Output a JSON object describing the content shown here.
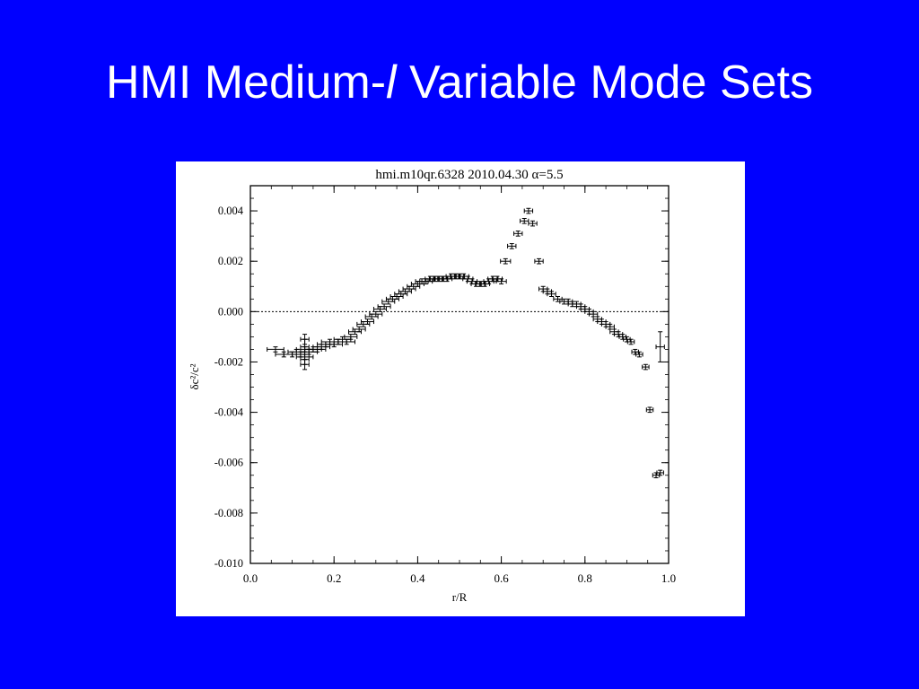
{
  "slide": {
    "title_pre": "HMI Medium-",
    "title_italic": "l",
    "title_post": " Variable Mode Sets"
  },
  "colors": {
    "background": "#0000ff",
    "title": "#ffffff",
    "plot_bg": "#ffffff",
    "ink": "#000000"
  },
  "chart_data": {
    "type": "scatter",
    "title": "hmi.m10qr.6328    2010.04.30    α=5.5",
    "xlabel": "r/R",
    "ylabel": "δc²/c²",
    "xlim": [
      0.0,
      1.0
    ],
    "ylim": [
      -0.01,
      0.005
    ],
    "xticks": [
      "0.0",
      "0.2",
      "0.4",
      "0.6",
      "0.8",
      "1.0"
    ],
    "yticks": [
      "0.004",
      "0.002",
      "0.000",
      "-0.002",
      "-0.004",
      "-0.006",
      "-0.008",
      "-0.010"
    ],
    "grid": false,
    "zero_line": true,
    "series": [
      {
        "x": [
          0.06,
          0.08,
          0.1,
          0.11,
          0.12,
          0.13,
          0.13,
          0.14,
          0.15,
          0.16,
          0.17,
          0.18,
          0.19,
          0.2,
          0.21,
          0.22,
          0.23,
          0.24,
          0.25,
          0.26,
          0.27,
          0.28,
          0.29,
          0.3,
          0.31,
          0.32,
          0.33,
          0.34,
          0.35,
          0.36,
          0.37,
          0.38,
          0.39,
          0.4,
          0.41,
          0.42,
          0.43,
          0.44,
          0.45,
          0.46,
          0.47,
          0.48,
          0.49,
          0.5,
          0.51,
          0.52,
          0.53,
          0.54,
          0.55,
          0.56,
          0.57,
          0.58,
          0.59,
          0.6,
          0.61,
          0.625,
          0.64,
          0.655,
          0.665,
          0.675,
          0.69,
          0.7,
          0.71,
          0.72,
          0.735,
          0.75,
          0.76,
          0.77,
          0.78,
          0.79,
          0.8,
          0.81,
          0.82,
          0.83,
          0.84,
          0.85,
          0.86,
          0.87,
          0.88,
          0.89,
          0.9,
          0.91,
          0.92,
          0.93,
          0.945,
          0.955,
          0.97,
          0.98
        ],
        "y": [
          -0.0015,
          -0.0017,
          -0.0017,
          -0.0016,
          -0.0017,
          -0.0018,
          -0.0015,
          -0.0016,
          -0.0015,
          -0.0015,
          -0.0014,
          -0.0013,
          -0.0012,
          -0.0013,
          -0.0012,
          -0.0011,
          -0.0012,
          -0.001,
          -0.0008,
          -0.0007,
          -0.0005,
          -0.0004,
          -0.0002,
          -0.0001,
          0.0001,
          0.0002,
          0.0004,
          0.0005,
          0.0006,
          0.0007,
          0.0008,
          0.0009,
          0.001,
          0.0011,
          0.0012,
          0.0012,
          0.0013,
          0.0013,
          0.0013,
          0.0013,
          0.0013,
          0.0014,
          0.0014,
          0.0014,
          0.0014,
          0.0013,
          0.0012,
          0.0011,
          0.0011,
          0.0011,
          0.0012,
          0.0013,
          0.0013,
          0.0012,
          0.002,
          0.0026,
          0.0031,
          0.0036,
          0.004,
          0.0035,
          0.002,
          0.0009,
          0.0008,
          0.0007,
          0.0005,
          0.0004,
          0.0004,
          0.0003,
          0.0003,
          0.0002,
          0.0001,
          0.0,
          -0.0001,
          -0.0003,
          -0.0004,
          -0.0005,
          -0.0006,
          -0.0008,
          -0.0009,
          -0.001,
          -0.0011,
          -0.0012,
          -0.0016,
          -0.0017,
          -0.0022,
          -0.0039,
          -0.0065,
          -0.0064
        ],
        "xerr": [
          0.02,
          0.02,
          0.02,
          0.02,
          0.02,
          0.02,
          0.02,
          0.02,
          0.02,
          0.02,
          0.02,
          0.02,
          0.02,
          0.02,
          0.02,
          0.02,
          0.02,
          0.015,
          0.015,
          0.015,
          0.015,
          0.015,
          0.015,
          0.015,
          0.015,
          0.015,
          0.015,
          0.015,
          0.015,
          0.015,
          0.015,
          0.015,
          0.015,
          0.015,
          0.015,
          0.015,
          0.012,
          0.012,
          0.012,
          0.012,
          0.012,
          0.012,
          0.012,
          0.012,
          0.012,
          0.012,
          0.012,
          0.012,
          0.012,
          0.012,
          0.012,
          0.012,
          0.012,
          0.012,
          0.012,
          0.01,
          0.01,
          0.01,
          0.01,
          0.01,
          0.01,
          0.01,
          0.01,
          0.01,
          0.01,
          0.01,
          0.01,
          0.01,
          0.01,
          0.01,
          0.01,
          0.01,
          0.01,
          0.01,
          0.01,
          0.01,
          0.01,
          0.01,
          0.01,
          0.008,
          0.008,
          0.008,
          0.008,
          0.008,
          0.008,
          0.008,
          0.008,
          0.008
        ],
        "yerr": 0.0001
      },
      {
        "x": [
          0.13,
          0.13,
          0.13,
          0.13
        ],
        "y": [
          -0.0011,
          -0.0019,
          -0.0021,
          -0.0014
        ],
        "xerr": [
          0.01,
          0.01,
          0.01,
          0.01
        ],
        "yerr": [
          0.0002,
          0.0002,
          0.0002,
          0.0003
        ]
      },
      {
        "x": [
          0.98
        ],
        "y": [
          -0.0014
        ],
        "xerr": [
          0.01
        ],
        "yerr": [
          0.0006
        ]
      }
    ]
  }
}
